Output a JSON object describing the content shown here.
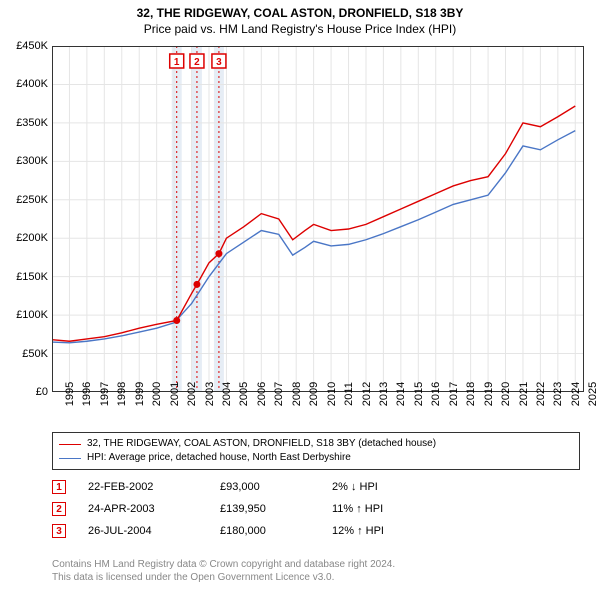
{
  "title_line1": "32, THE RIDGEWAY, COAL ASTON, DRONFIELD, S18 3BY",
  "title_line2": "Price paid vs. HM Land Registry's House Price Index (HPI)",
  "chart": {
    "type": "line",
    "x_min": 1995,
    "x_max": 2025.5,
    "y_min": 0,
    "y_max": 450000,
    "y_ticks": [
      0,
      50000,
      100000,
      150000,
      200000,
      250000,
      300000,
      350000,
      400000,
      450000
    ],
    "y_tick_labels": [
      "£0",
      "£50K",
      "£100K",
      "£150K",
      "£200K",
      "£250K",
      "£300K",
      "£350K",
      "£400K",
      "£450K"
    ],
    "x_ticks": [
      1995,
      1996,
      1997,
      1998,
      1999,
      2000,
      2001,
      2002,
      2003,
      2004,
      2005,
      2006,
      2007,
      2008,
      2009,
      2010,
      2011,
      2012,
      2013,
      2014,
      2015,
      2016,
      2017,
      2018,
      2019,
      2020,
      2021,
      2022,
      2023,
      2024,
      2025
    ],
    "grid_color": "#e5e5e5",
    "axis_color": "#333333",
    "background_color": "#ffffff",
    "vline_color": "#dd0000",
    "vshade_color": "#b7cbe3",
    "vshade_opacity": 0.35,
    "series": [
      {
        "name": "property",
        "color": "#dd0000",
        "width": 1.4,
        "points": [
          [
            1995,
            68
          ],
          [
            1996,
            66
          ],
          [
            1997,
            69
          ],
          [
            1998,
            72
          ],
          [
            1999,
            77
          ],
          [
            2000,
            83
          ],
          [
            2001,
            88
          ],
          [
            2002.15,
            93
          ],
          [
            2003,
            128
          ],
          [
            2003.31,
            139.95
          ],
          [
            2004,
            168
          ],
          [
            2004.57,
            180
          ],
          [
            2005,
            200
          ],
          [
            2006,
            215
          ],
          [
            2007,
            232
          ],
          [
            2008,
            225
          ],
          [
            2008.8,
            198
          ],
          [
            2009.5,
            210
          ],
          [
            2010,
            218
          ],
          [
            2011,
            210
          ],
          [
            2012,
            212
          ],
          [
            2013,
            218
          ],
          [
            2014,
            228
          ],
          [
            2015,
            238
          ],
          [
            2016,
            248
          ],
          [
            2017,
            258
          ],
          [
            2018,
            268
          ],
          [
            2019,
            275
          ],
          [
            2020,
            280
          ],
          [
            2021,
            310
          ],
          [
            2022,
            350
          ],
          [
            2023,
            345
          ],
          [
            2024,
            358
          ],
          [
            2025,
            372
          ]
        ]
      },
      {
        "name": "hpi",
        "color": "#4a76c6",
        "width": 1.4,
        "points": [
          [
            1995,
            65
          ],
          [
            1996,
            64
          ],
          [
            1997,
            66
          ],
          [
            1998,
            69
          ],
          [
            1999,
            73
          ],
          [
            2000,
            78
          ],
          [
            2001,
            83
          ],
          [
            2002,
            90
          ],
          [
            2003,
            115
          ],
          [
            2004,
            150
          ],
          [
            2005,
            180
          ],
          [
            2006,
            195
          ],
          [
            2007,
            210
          ],
          [
            2008,
            205
          ],
          [
            2008.8,
            178
          ],
          [
            2009.5,
            188
          ],
          [
            2010,
            196
          ],
          [
            2011,
            190
          ],
          [
            2012,
            192
          ],
          [
            2013,
            198
          ],
          [
            2014,
            206
          ],
          [
            2015,
            215
          ],
          [
            2016,
            224
          ],
          [
            2017,
            234
          ],
          [
            2018,
            244
          ],
          [
            2019,
            250
          ],
          [
            2020,
            256
          ],
          [
            2021,
            285
          ],
          [
            2022,
            320
          ],
          [
            2023,
            315
          ],
          [
            2024,
            328
          ],
          [
            2025,
            340
          ]
        ]
      }
    ],
    "sale_markers": [
      {
        "n": "1",
        "x": 2002.15,
        "y": 93,
        "color": "#dd0000"
      },
      {
        "n": "2",
        "x": 2003.31,
        "y": 139.95,
        "color": "#dd0000"
      },
      {
        "n": "3",
        "x": 2004.57,
        "y": 180,
        "color": "#dd0000"
      }
    ]
  },
  "legend": {
    "line1": {
      "color": "#dd0000",
      "text": "32, THE RIDGEWAY, COAL ASTON, DRONFIELD, S18 3BY (detached house)"
    },
    "line2": {
      "color": "#4a76c6",
      "text": "HPI: Average price, detached house, North East Derbyshire"
    }
  },
  "sales": [
    {
      "n": "1",
      "color": "#dd0000",
      "date": "22-FEB-2002",
      "price": "£93,000",
      "pct": "2% ↓ HPI"
    },
    {
      "n": "2",
      "color": "#dd0000",
      "date": "24-APR-2003",
      "price": "£139,950",
      "pct": "11% ↑ HPI"
    },
    {
      "n": "3",
      "color": "#dd0000",
      "date": "26-JUL-2004",
      "price": "£180,000",
      "pct": "12% ↑ HPI"
    }
  ],
  "footer_line1": "Contains HM Land Registry data © Crown copyright and database right 2024.",
  "footer_line2": "This data is licensed under the Open Government Licence v3.0."
}
